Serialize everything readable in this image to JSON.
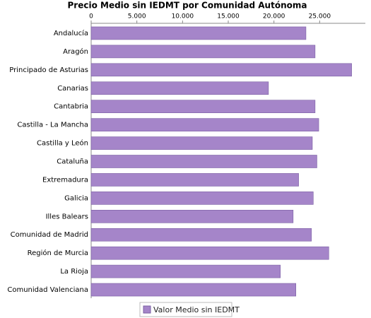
{
  "chart_data": {
    "type": "hbar",
    "title": "Precio Medio sin IEDMT por Comunidad Autónoma",
    "categories": [
      "Andalucía",
      "Aragón",
      "Principado de Asturias",
      "Canarias",
      "Cantabria",
      "Castilla - La Mancha",
      "Castilla y León",
      "Cataluña",
      "Extremadura",
      "Galicia",
      "Illes Balears",
      "Comunidad de Madrid",
      "Región de Murcia",
      "La Rioja",
      "Comunidad Valenciana"
    ],
    "series": [
      {
        "name": "Valor Medio sin IEDMT",
        "color": "#a585c9",
        "values": [
          23500,
          24500,
          28500,
          19400,
          24500,
          24900,
          24200,
          24700,
          22700,
          24300,
          22100,
          24100,
          26000,
          20700,
          22400
        ]
      }
    ],
    "xlim": [
      0,
      30000
    ],
    "xticks": [
      0,
      {
        "value": 5000,
        "label": "5.000"
      },
      {
        "value": 10000,
        "label": "10.000"
      },
      {
        "value": 15000,
        "label": "15.000"
      },
      {
        "value": 20000,
        "label": "20.000"
      },
      {
        "value": 25000,
        "label": "25.000"
      }
    ],
    "legend": "bottom"
  }
}
